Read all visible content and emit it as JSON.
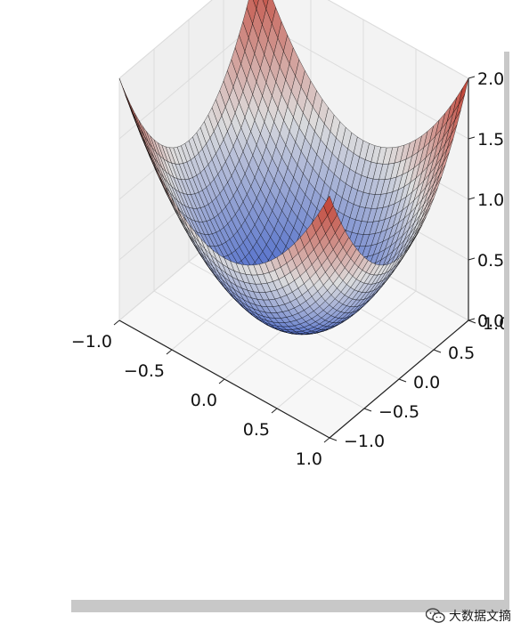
{
  "chart_data": {
    "type": "surface3d",
    "function": "z = x^2 + y^2",
    "title": "",
    "xlabel": "",
    "ylabel": "",
    "zlabel": "",
    "xlim": [
      -1.0,
      1.0
    ],
    "ylim": [
      -1.0,
      1.0
    ],
    "zlim": [
      0.0,
      2.0
    ],
    "x_ticks": [
      "−1.0",
      "−0.5",
      "0.0",
      "0.5",
      "1.0"
    ],
    "y_ticks": [
      "−1.0",
      "−0.5",
      "0.0",
      "0.5",
      "1.0"
    ],
    "z_ticks": [
      "0.0",
      "0.5",
      "1.0",
      "1.5",
      "2.0"
    ],
    "grid": true,
    "colormap": "coolwarm",
    "colors": {
      "low": "#3b5dc9",
      "mid": "#dddddd",
      "high": "#c0392b",
      "edge": "#000000"
    },
    "samples": {
      "x": [
        -1.0,
        -0.5,
        0.0,
        0.5,
        1.0
      ],
      "y": [
        -1.0,
        -0.5,
        0.0,
        0.5,
        1.0
      ],
      "z": [
        [
          2.0,
          1.25,
          1.0,
          1.25,
          2.0
        ],
        [
          1.25,
          0.5,
          0.25,
          0.5,
          1.25
        ],
        [
          1.0,
          0.25,
          0.0,
          0.25,
          1.0
        ],
        [
          1.25,
          0.5,
          0.25,
          0.5,
          1.25
        ],
        [
          2.0,
          1.25,
          1.0,
          1.25,
          2.0
        ]
      ]
    }
  },
  "watermark": {
    "icon": "wechat-icon",
    "text": "大数据文摘"
  }
}
